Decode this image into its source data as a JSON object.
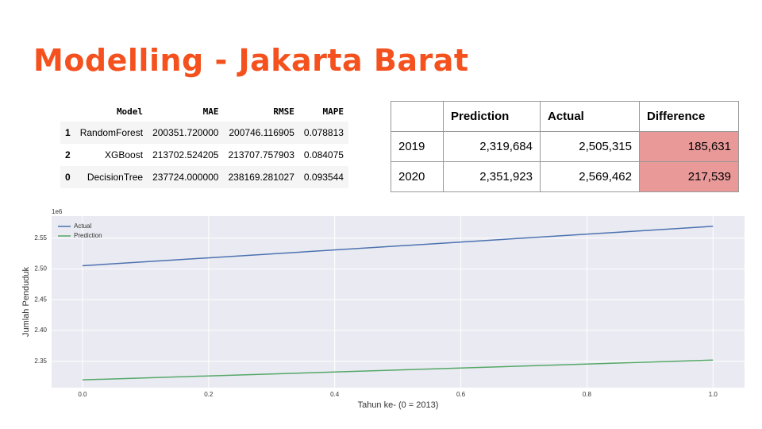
{
  "title": "Modelling - Jakarta Barat",
  "model_table": {
    "header": [
      "",
      "Model",
      "MAE",
      "RMSE",
      "MAPE"
    ],
    "rows": [
      [
        "1",
        "RandomForest",
        "200351.720000",
        "200746.116905",
        "0.078813"
      ],
      [
        "2",
        "XGBoost",
        "213702.524205",
        "213707.757903",
        "0.084075"
      ],
      [
        "0",
        "DecisionTree",
        "237724.000000",
        "238169.281027",
        "0.093544"
      ]
    ]
  },
  "result_table": {
    "header": [
      "",
      "Prediction",
      "Actual",
      "Difference"
    ],
    "rows": [
      [
        "2019",
        "2,319,684",
        "2,505,315",
        "185,631"
      ],
      [
        "2020",
        "2,351,923",
        "2,569,462",
        "217,539"
      ]
    ]
  },
  "chart_data": {
    "type": "line",
    "x": [
      0,
      1
    ],
    "series": [
      {
        "name": "Actual",
        "color": "#4c72b0",
        "values": [
          2.505315,
          2.569462
        ]
      },
      {
        "name": "Prediction",
        "color": "#55a868",
        "values": [
          2.319684,
          2.351923
        ]
      }
    ],
    "xlabel": "Tahun ke- (0 = 2013)",
    "ylabel": "Jumlah Penduduk",
    "y_offset_label": "1e6",
    "xlim": [
      -0.049,
      1.05
    ],
    "ylim": [
      2.307,
      2.586
    ],
    "xticks": [
      {
        "value": 0,
        "label": "0.0"
      },
      {
        "value": 0.2,
        "label": "0.2"
      },
      {
        "value": 0.4,
        "label": "0.4"
      },
      {
        "value": 0.6,
        "label": "0.6"
      },
      {
        "value": 0.8,
        "label": "0.8"
      },
      {
        "value": 1,
        "label": "1.0"
      }
    ],
    "yticks": [
      2.35,
      {
        "value": 2.4,
        "label": "2.40"
      },
      2.45,
      {
        "value": 2.5,
        "label": "2.50"
      },
      2.55
    ],
    "grid": true,
    "legend": "upper-left"
  }
}
